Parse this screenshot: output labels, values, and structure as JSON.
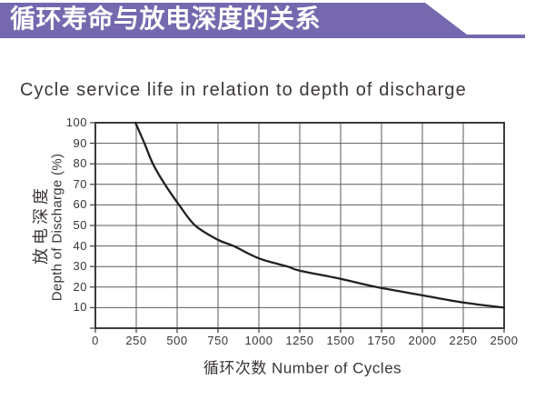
{
  "page": {
    "background": "#ffffff",
    "text_color": "#3b3537"
  },
  "banner": {
    "title_cn": "循环寿命与放电深度的关系",
    "color": "#7568ae",
    "text_color": "#ffffff"
  },
  "page_title": "Cycle service life in relation to depth of discharge",
  "chart_data": {
    "type": "line",
    "title": "Cycle service life in relation to depth of discharge",
    "title_cn": "循环寿命与放电深度的关系",
    "xlabel": "循环次数 Number of Cycles",
    "xlabel_cn": "循环次数",
    "xlabel_en": "Number of Cycles",
    "ylabel_cn": "放电深度",
    "ylabel_en": "Depth of Discharge (%)",
    "xlim": [
      0,
      2500
    ],
    "ylim": [
      0,
      100
    ],
    "x_ticks": [
      0,
      250,
      500,
      750,
      1000,
      1250,
      1500,
      1750,
      2000,
      2250,
      2500
    ],
    "y_ticks": [
      100,
      90,
      80,
      70,
      60,
      50,
      40,
      30,
      20,
      10
    ],
    "grid": true,
    "legend": "none",
    "series": [
      {
        "name": "depth-of-discharge-vs-number-of-cycles",
        "x_cycles": [
          245,
          300,
          352,
          425,
          512,
          610,
          750,
          845,
          1000,
          1176,
          1250,
          1500,
          1720,
          2000,
          2250,
          2500
        ],
        "y_dod_percent": [
          100,
          90,
          80,
          70,
          60,
          50,
          43,
          40,
          34,
          30,
          28,
          24,
          20,
          16,
          12.5,
          10
        ]
      }
    ],
    "colors": {
      "curve": "#231f20",
      "grid": "#5e585a",
      "border": "#403a3c",
      "text": "#3b3537"
    }
  }
}
